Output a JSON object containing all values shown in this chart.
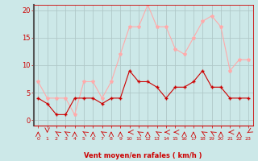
{
  "x": [
    0,
    1,
    2,
    3,
    4,
    5,
    6,
    7,
    8,
    9,
    10,
    11,
    12,
    13,
    14,
    15,
    16,
    17,
    18,
    19,
    20,
    21,
    22,
    23
  ],
  "wind_avg": [
    4,
    3,
    1,
    1,
    4,
    4,
    4,
    3,
    4,
    4,
    9,
    7,
    7,
    6,
    4,
    6,
    6,
    7,
    9,
    6,
    6,
    4,
    4,
    4
  ],
  "wind_gust": [
    7,
    4,
    4,
    4,
    1,
    7,
    7,
    4,
    7,
    12,
    17,
    17,
    21,
    17,
    17,
    13,
    12,
    15,
    18,
    19,
    17,
    9,
    11,
    11
  ],
  "wind_dir": [
    180,
    0,
    225,
    225,
    180,
    225,
    180,
    225,
    180,
    180,
    270,
    225,
    180,
    225,
    270,
    270,
    180,
    180,
    225,
    225,
    180,
    270,
    180,
    315
  ],
  "bg_color": "#cce8e8",
  "grid_color": "#b0c8c8",
  "avg_color": "#cc0000",
  "gust_color": "#ffaaaa",
  "xlabel": "Vent moyen/en rafales ( km/h )",
  "xlabel_color": "#cc0000",
  "tick_color": "#cc0000",
  "spine_left_color": "#555555",
  "ylim": [
    -1,
    21
  ],
  "yticks": [
    0,
    5,
    10,
    15,
    20
  ],
  "xlim": [
    -0.5,
    23.5
  ]
}
